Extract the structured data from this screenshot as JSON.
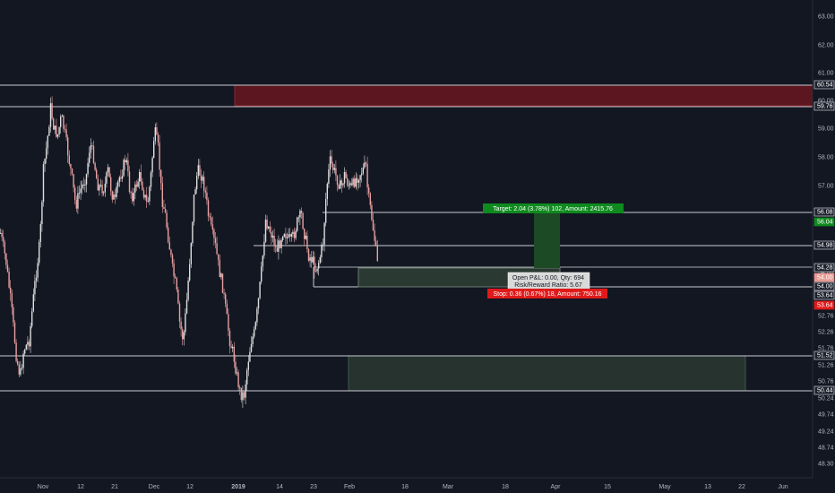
{
  "chart": {
    "symbol_type": "candlestick",
    "background": "#131722",
    "up_color": "#dedede",
    "down_color": "#e8a0a0",
    "line_color": "#c9cbd1"
  },
  "price_axis": {
    "ticks": [
      "63.00",
      "62.00",
      "61.00",
      "60.00",
      "59.00",
      "58.00",
      "57.00",
      "56.00",
      "54.98",
      "54.00",
      "53.64",
      "52.76",
      "52.26",
      "51.76",
      "51.26",
      "50.76",
      "50.24",
      "49.74",
      "49.24",
      "48.74",
      "48.30"
    ],
    "tags": [
      {
        "label": "60.54",
        "style": "outline"
      },
      {
        "label": "59.76",
        "style": "outline"
      },
      {
        "label": "56.08",
        "style": "outline"
      },
      {
        "label": "56.04",
        "style": "green"
      },
      {
        "label": "54.98",
        "style": "outline"
      },
      {
        "label": "54.28",
        "style": "outline"
      },
      {
        "label": "54.00",
        "style": "salmon"
      },
      {
        "label": "54.00",
        "style": "outline"
      },
      {
        "label": "53.64",
        "style": "outline"
      },
      {
        "label": "53.64",
        "style": "red"
      },
      {
        "label": "51.52",
        "style": "outline"
      },
      {
        "label": "50.44",
        "style": "outline"
      }
    ]
  },
  "time_axis": {
    "labels": [
      "Nov",
      "12",
      "21",
      "Dec",
      "12",
      "2019",
      "14",
      "23",
      "Feb",
      "18",
      "Mar",
      "18",
      "Apr",
      "15",
      "May",
      "13",
      "22",
      "Jun"
    ],
    "bold_labels": [
      "2019"
    ]
  },
  "position": {
    "target_label": "Target: 2.04 (3.78%) 102, Amount: 2415.76",
    "pnl_label": "Open P&L: 0.00, Qty: 694",
    "rr_label": "Risk/Reward Ratio: 5.67",
    "stop_label": "Stop: 0.36 (0.67%) 18, Amount: 750.16",
    "target_color": "#0f8a1f",
    "stop_color": "#e01a1a"
  },
  "zones": [
    {
      "name": "supply",
      "from": 59.76,
      "to": 60.54,
      "color": "#6e1622"
    },
    {
      "name": "demand",
      "from": 50.44,
      "to": 51.52,
      "color": "#26362f"
    }
  ]
}
